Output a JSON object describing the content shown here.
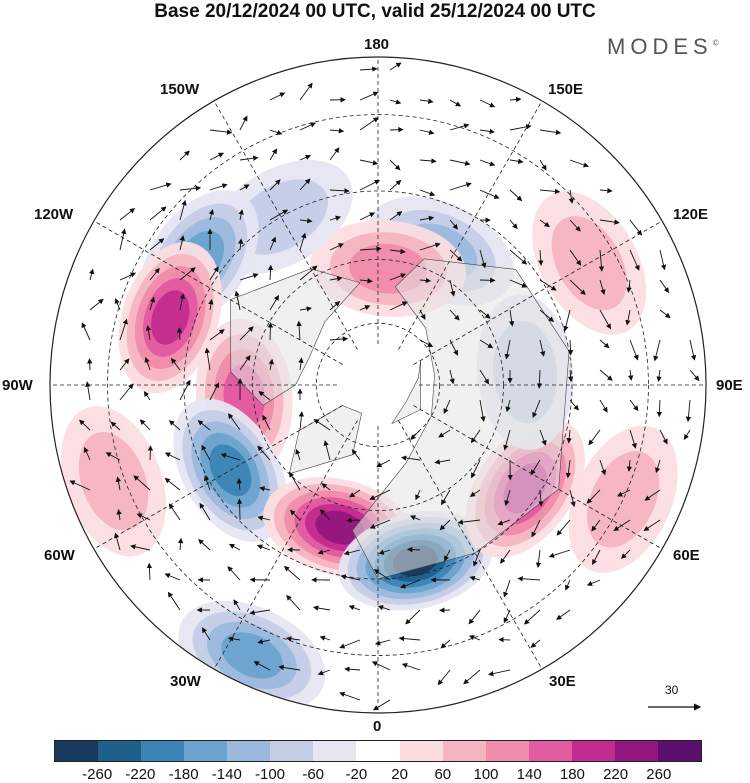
{
  "title": "Base 20/12/2024 00 UTC, valid 25/12/2024 00 UTC",
  "brand": "MODES",
  "brand_mark": "©",
  "longitudes": {
    "top": "180",
    "top_left": "150W",
    "top_right": "150E",
    "upper_left": "120W",
    "upper_right": "120E",
    "left": "90W",
    "right": "90E",
    "lower_left": "60W",
    "lower_right": "60E",
    "bottom_left": "30W",
    "bottom_right": "30E",
    "bottom": "0"
  },
  "vector_scale": {
    "label": "30"
  },
  "colorbar": {
    "colors": [
      "#173a5e",
      "#1f5f8c",
      "#3d84b6",
      "#6aa3cf",
      "#9ab9dd",
      "#c4cde6",
      "#e6e6f2",
      "#ffffff",
      "#fbdde0",
      "#f6b4c0",
      "#f08bab",
      "#e25aa0",
      "#c22b8f",
      "#93167f",
      "#5a0f6e"
    ],
    "ticks": [
      "-260",
      "-220",
      "-180",
      "-140",
      "-100",
      "-60",
      "-20",
      "20",
      "60",
      "100",
      "140",
      "180",
      "220",
      "260"
    ]
  },
  "map_data": {
    "projection": "north-polar-stereographic",
    "field": "geopotential height anomaly with wind vectors",
    "blobs": [
      {
        "lon": 120,
        "lat": 35,
        "value": 80
      },
      {
        "lon": 155,
        "lat": 55,
        "value": -120
      },
      {
        "lon": 175,
        "lat": 62,
        "value": 120
      },
      {
        "lon": -150,
        "lat": 45,
        "value": -80
      },
      {
        "lon": -125,
        "lat": 40,
        "value": -140
      },
      {
        "lon": -108,
        "lat": 40,
        "value": 200
      },
      {
        "lon": -85,
        "lat": 58,
        "value": 160
      },
      {
        "lon": -60,
        "lat": 50,
        "value": -200
      },
      {
        "lon": -15,
        "lat": 55,
        "value": 230
      },
      {
        "lon": 12,
        "lat": 48,
        "value": -260
      },
      {
        "lon": 55,
        "lat": 48,
        "value": 180
      },
      {
        "lon": 95,
        "lat": 55,
        "value": -60
      },
      {
        "lon": -70,
        "lat": 28,
        "value": 80
      },
      {
        "lon": -25,
        "lat": 25,
        "value": -140
      },
      {
        "lon": 65,
        "lat": 30,
        "value": 60
      }
    ]
  }
}
